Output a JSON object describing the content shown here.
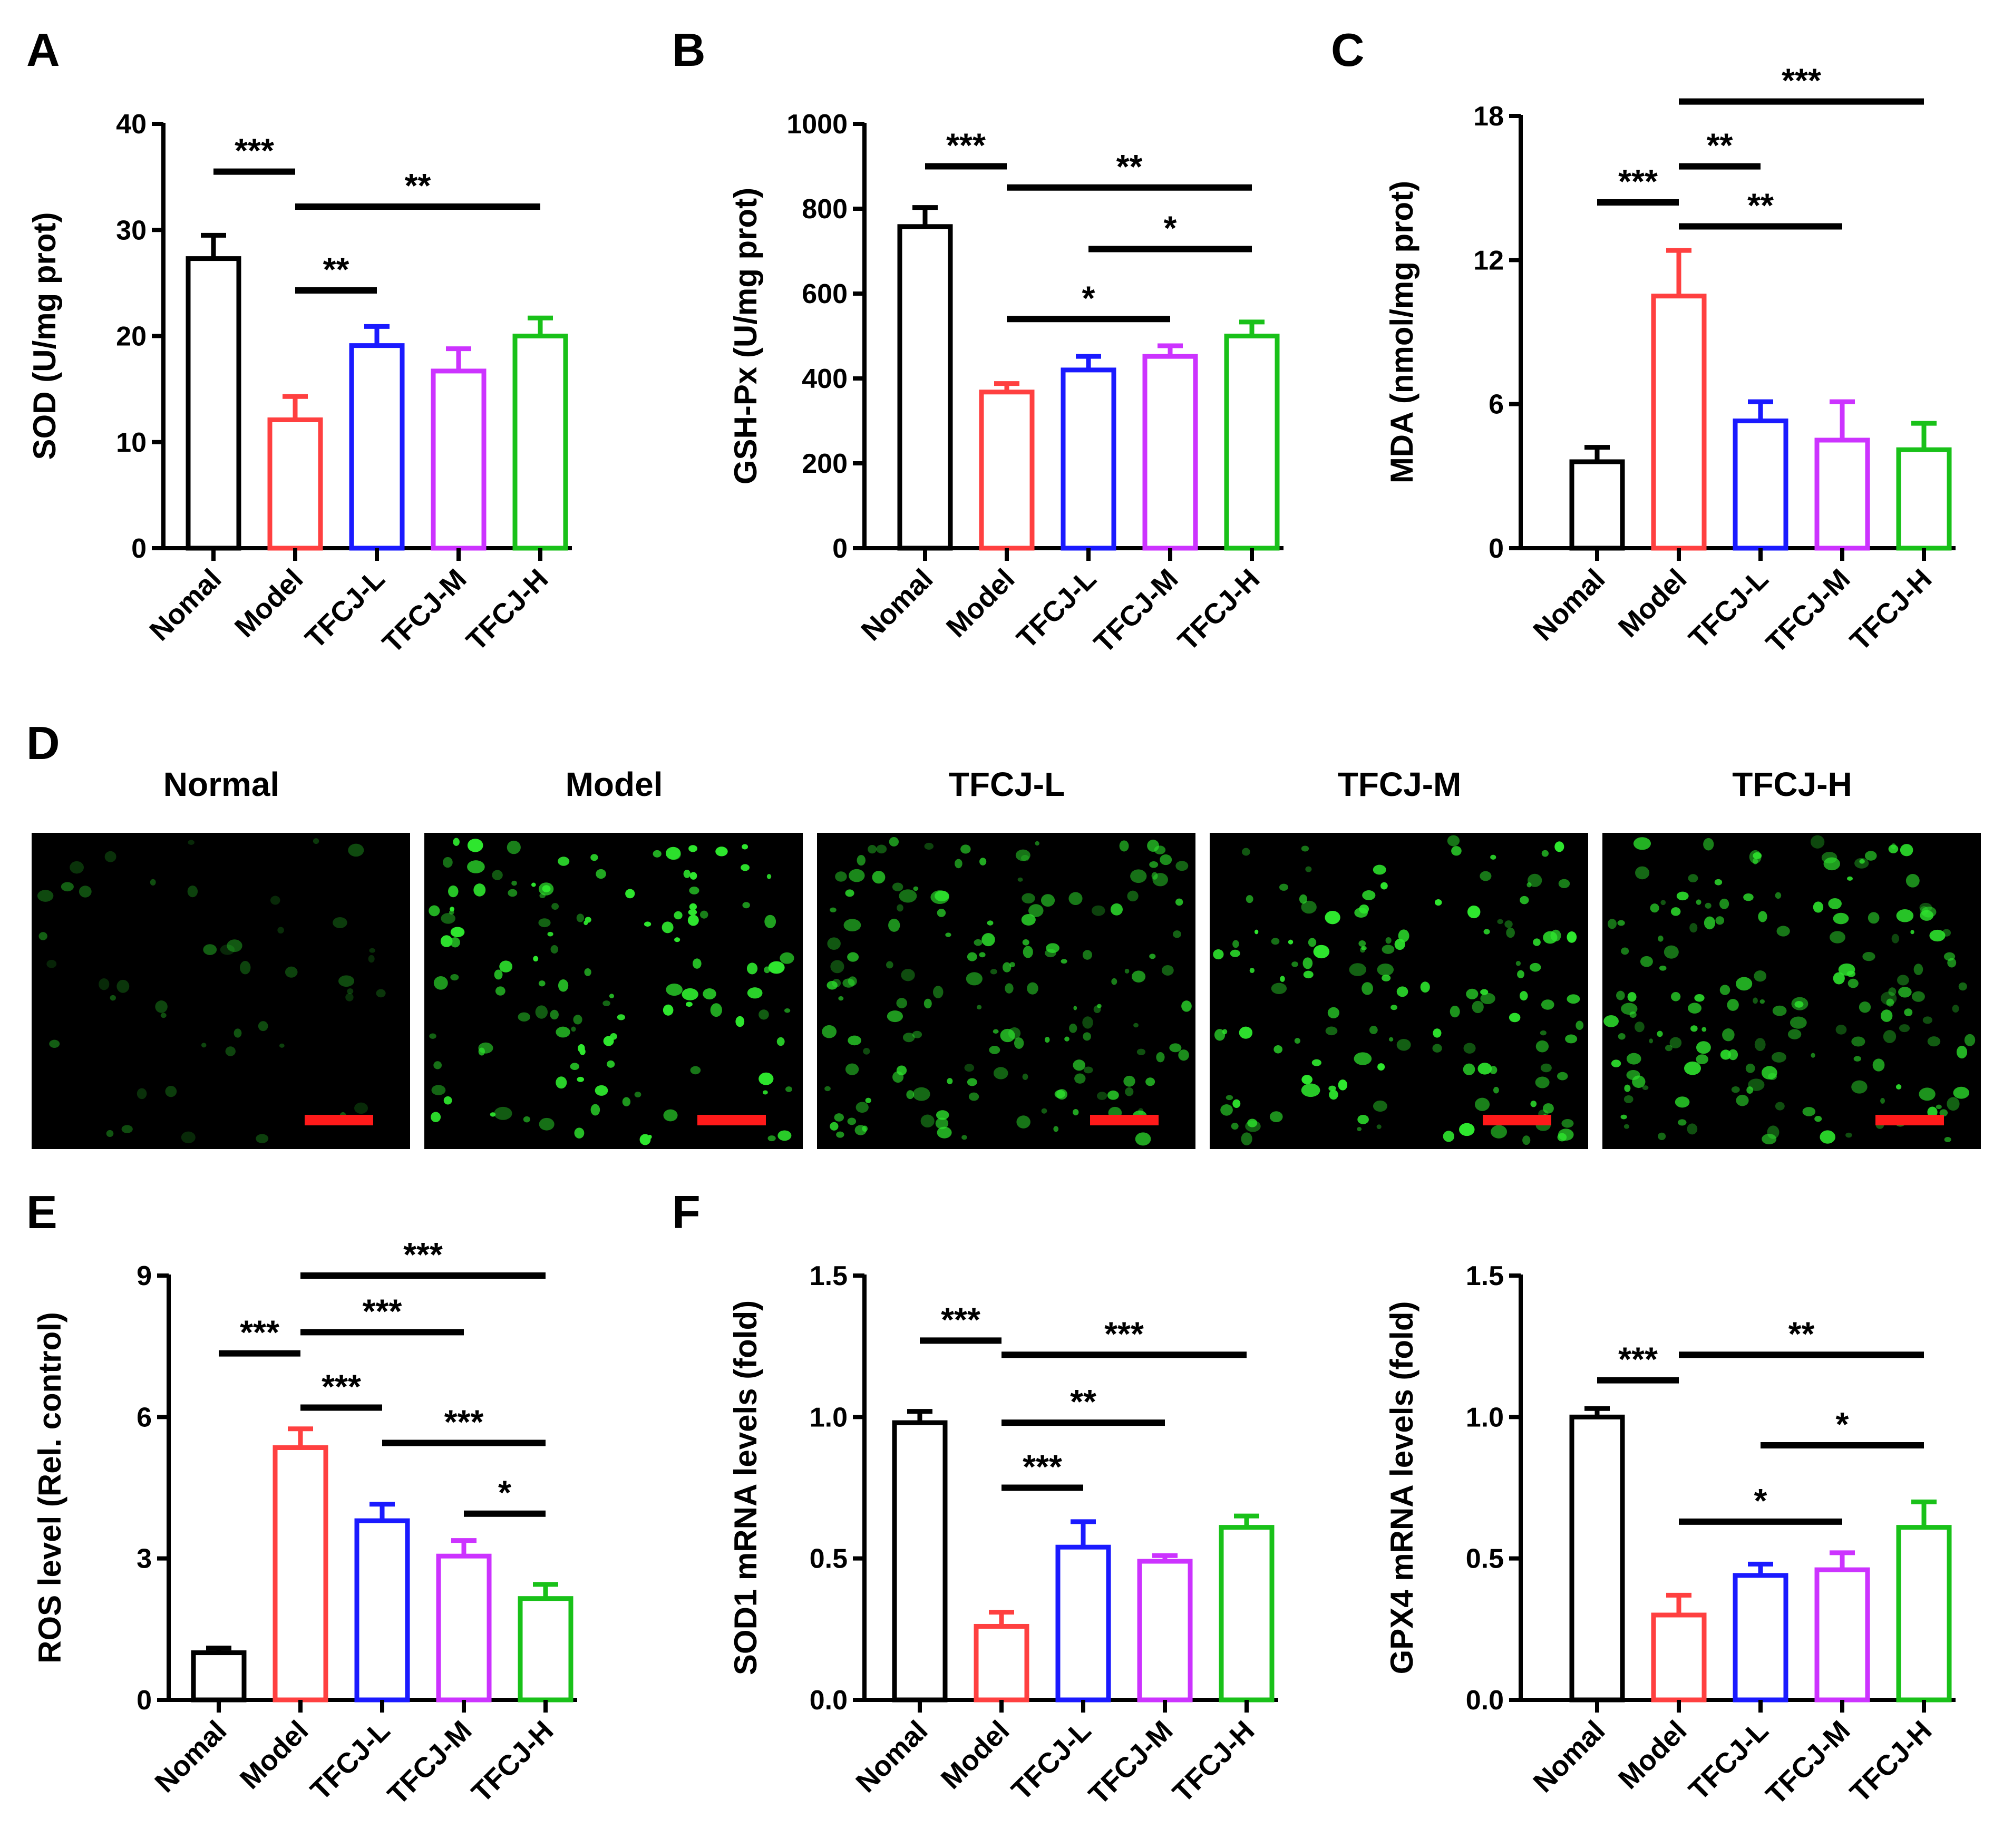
{
  "figure": {
    "panel_letters": [
      "A",
      "B",
      "C",
      "D",
      "E",
      "F"
    ]
  },
  "chart_data": [
    {
      "id": "A",
      "type": "bar",
      "letter": "A",
      "ylabel": "SOD (U/mg prot)",
      "ylim": [
        0,
        40
      ],
      "yticks": [
        "0",
        "10",
        "20",
        "30",
        "40"
      ],
      "categories": [
        "Nomal",
        "Model",
        "TFCJ-L",
        "TFCJ-M",
        "TFCJ-H"
      ],
      "values": [
        27.3,
        12.1,
        19.1,
        16.7,
        20.0
      ],
      "errors": [
        2.2,
        2.2,
        1.8,
        2.1,
        1.7
      ],
      "colors": [
        "#000000",
        "#ff4040",
        "#1a1aff",
        "#cc33ff",
        "#19c119"
      ],
      "brackets": [
        {
          "from": 0,
          "to": 1,
          "y": 35.5,
          "label": "***"
        },
        {
          "from": 1,
          "to": 4,
          "y": 32.2,
          "label": "**"
        },
        {
          "from": 1,
          "to": 2,
          "y": 24.3,
          "label": "**"
        }
      ]
    },
    {
      "id": "B",
      "type": "bar",
      "letter": "B",
      "ylabel": "GSH-Px (U/mg prot)",
      "ylim": [
        0,
        1000
      ],
      "yticks": [
        "0",
        "200",
        "400",
        "600",
        "800",
        "1000"
      ],
      "categories": [
        "Nomal",
        "Model",
        "TFCJ-L",
        "TFCJ-M",
        "TFCJ-H"
      ],
      "values": [
        758,
        368,
        420,
        452,
        500
      ],
      "errors": [
        45,
        20,
        32,
        25,
        33
      ],
      "colors": [
        "#000000",
        "#ff4040",
        "#1a1aff",
        "#cc33ff",
        "#19c119"
      ],
      "brackets": [
        {
          "from": 0,
          "to": 1,
          "y": 900,
          "label": "***"
        },
        {
          "from": 1,
          "to": 4,
          "y": 850,
          "label": "**"
        },
        {
          "from": 2,
          "to": 4,
          "y": 705,
          "label": "*"
        },
        {
          "from": 1,
          "to": 3,
          "y": 540,
          "label": "*"
        }
      ]
    },
    {
      "id": "C",
      "type": "bar",
      "letter": "C",
      "ylabel": "MDA (nmol/mg prot)",
      "ylim": [
        0,
        18
      ],
      "yticks": [
        "0",
        "6",
        "12",
        "18"
      ],
      "categories": [
        "Nomal",
        "Model",
        "TFCJ-L",
        "TFCJ-M",
        "TFCJ-H"
      ],
      "values": [
        3.6,
        10.5,
        5.3,
        4.5,
        4.1
      ],
      "errors": [
        0.6,
        1.9,
        0.8,
        1.6,
        1.1
      ],
      "colors": [
        "#000000",
        "#ff4040",
        "#1a1aff",
        "#cc33ff",
        "#19c119"
      ],
      "brackets": [
        {
          "from": 1,
          "to": 4,
          "y": 18.6,
          "label": "***"
        },
        {
          "from": 1,
          "to": 2,
          "y": 15.9,
          "label": "**"
        },
        {
          "from": 0,
          "to": 1,
          "y": 14.4,
          "label": "***"
        },
        {
          "from": 1,
          "to": 3,
          "y": 13.4,
          "label": "**"
        }
      ]
    },
    {
      "id": "E",
      "type": "bar",
      "letter": "E",
      "ylabel": "ROS level (Rel. control)",
      "ylim": [
        0,
        9
      ],
      "yticks": [
        "0",
        "3",
        "6",
        "9"
      ],
      "categories": [
        "Nomal",
        "Model",
        "TFCJ-L",
        "TFCJ-M",
        "TFCJ-H"
      ],
      "values": [
        1.0,
        5.35,
        3.8,
        3.05,
        2.15
      ],
      "errors": [
        0.1,
        0.4,
        0.35,
        0.33,
        0.3
      ],
      "colors": [
        "#000000",
        "#ff4040",
        "#1a1aff",
        "#cc33ff",
        "#19c119"
      ],
      "brackets": [
        {
          "from": 1,
          "to": 4,
          "y": 9.0,
          "label": "***"
        },
        {
          "from": 1,
          "to": 3,
          "y": 7.8,
          "label": "***"
        },
        {
          "from": 0,
          "to": 1,
          "y": 7.35,
          "label": "***"
        },
        {
          "from": 1,
          "to": 2,
          "y": 6.2,
          "label": "***"
        },
        {
          "from": 2,
          "to": 4,
          "y": 5.45,
          "label": "***"
        },
        {
          "from": 3,
          "to": 4,
          "y": 3.95,
          "label": "*"
        }
      ]
    },
    {
      "id": "F1",
      "type": "bar",
      "letter": "F",
      "ylabel": "SOD1 mRNA levels (fold)",
      "ylim": [
        0,
        1.5
      ],
      "yticks": [
        "0.0",
        "0.5",
        "1.0",
        "1.5"
      ],
      "categories": [
        "Nomal",
        "Model",
        "TFCJ-L",
        "TFCJ-M",
        "TFCJ-H"
      ],
      "values": [
        0.98,
        0.26,
        0.54,
        0.49,
        0.61
      ],
      "errors": [
        0.04,
        0.05,
        0.09,
        0.02,
        0.04
      ],
      "colors": [
        "#000000",
        "#ff4040",
        "#1a1aff",
        "#cc33ff",
        "#19c119"
      ],
      "brackets": [
        {
          "from": 0,
          "to": 1,
          "y": 1.27,
          "label": "***"
        },
        {
          "from": 1,
          "to": 4,
          "y": 1.22,
          "label": "***"
        },
        {
          "from": 1,
          "to": 3,
          "y": 0.98,
          "label": "**"
        },
        {
          "from": 1,
          "to": 2,
          "y": 0.75,
          "label": "***"
        }
      ]
    },
    {
      "id": "F2",
      "type": "bar",
      "letter": "",
      "ylabel": "GPX4 mRNA levels (fold)",
      "ylim": [
        0,
        1.5
      ],
      "yticks": [
        "0.0",
        "0.5",
        "1.0",
        "1.5"
      ],
      "categories": [
        "Nomal",
        "Model",
        "TFCJ-L",
        "TFCJ-M",
        "TFCJ-H"
      ],
      "values": [
        1.0,
        0.3,
        0.44,
        0.46,
        0.61
      ],
      "errors": [
        0.03,
        0.07,
        0.04,
        0.06,
        0.09
      ],
      "colors": [
        "#000000",
        "#ff4040",
        "#1a1aff",
        "#cc33ff",
        "#19c119"
      ],
      "brackets": [
        {
          "from": 1,
          "to": 4,
          "y": 1.22,
          "label": "**"
        },
        {
          "from": 0,
          "to": 1,
          "y": 1.13,
          "label": "***"
        },
        {
          "from": 2,
          "to": 4,
          "y": 0.9,
          "label": "*"
        },
        {
          "from": 1,
          "to": 3,
          "y": 0.63,
          "label": "*"
        }
      ]
    }
  ],
  "micrographs": {
    "letter": "D",
    "titles": [
      "Normal",
      "Model",
      "TFCJ-L",
      "TFCJ-M",
      "TFCJ-H"
    ],
    "cell_color": "#2ee62e",
    "background": "#000000",
    "scale_bar_color": "#ff1a1a",
    "cell_counts": [
      45,
      120,
      150,
      130,
      160
    ],
    "brightness": [
      0.35,
      0.95,
      0.7,
      0.85,
      0.75
    ]
  }
}
